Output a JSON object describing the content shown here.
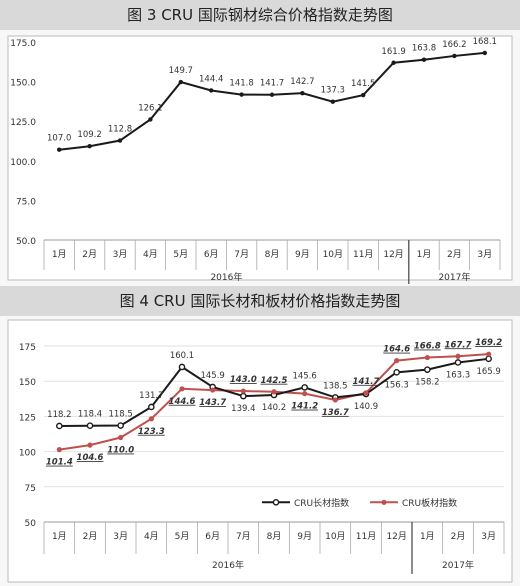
{
  "chart_data": [
    {
      "type": "line",
      "title": "图 3  CRU 国际钢材综合价格指数走势图",
      "categories": [
        "1月",
        "2月",
        "3月",
        "4月",
        "5月",
        "6月",
        "7月",
        "8月",
        "9月",
        "10月",
        "11月",
        "12月",
        "1月",
        "2月",
        "3月"
      ],
      "year_groups": [
        {
          "label": "2016年",
          "start": 0,
          "end": 11
        },
        {
          "label": "2017年",
          "start": 12,
          "end": 14
        }
      ],
      "ylim": [
        50,
        175
      ],
      "yticks": [
        "50.0",
        "75.0",
        "100.0",
        "125.0",
        "150.0",
        "175.0"
      ],
      "grid": false,
      "series": [
        {
          "values": [
            107.0,
            109.2,
            112.8,
            126.1,
            149.7,
            144.4,
            141.8,
            141.7,
            142.7,
            137.3,
            141.5,
            161.9,
            163.8,
            166.2,
            168.1
          ],
          "labels": [
            "107.0",
            "109.2",
            "112.8",
            "126.1",
            "149.7",
            "144.4",
            "141.8",
            "141.7",
            "142.7",
            "137.3",
            "141.5",
            "161.9",
            "163.8",
            "166.2",
            "168.1"
          ],
          "color": "#1a1a1a"
        }
      ]
    },
    {
      "type": "line",
      "title": "图 4  CRU 国际长材和板材价格指数走势图",
      "categories": [
        "1月",
        "2月",
        "3月",
        "4月",
        "5月",
        "6月",
        "7月",
        "8月",
        "9月",
        "10月",
        "11月",
        "12月",
        "1月",
        "2月",
        "3月"
      ],
      "year_groups": [
        {
          "label": "2016年",
          "start": 0,
          "end": 11
        },
        {
          "label": "2017年",
          "start": 12,
          "end": 14
        }
      ],
      "ylim": [
        50,
        175
      ],
      "yticks": [
        "50",
        "75",
        "100",
        "125",
        "150",
        "175"
      ],
      "grid": true,
      "legend_position": "bottom-right",
      "series": [
        {
          "name": "CRU长材指数",
          "values": [
            118.2,
            118.4,
            118.5,
            131.7,
            160.1,
            145.9,
            139.4,
            140.2,
            145.6,
            138.5,
            140.9,
            156.3,
            158.2,
            163.3,
            165.9
          ],
          "labels": [
            "118.2",
            "118.4",
            "118.5",
            "131.7",
            "160.1",
            "145.9",
            "139.4",
            "140.2",
            "145.6",
            "138.5",
            "140.9",
            "156.3",
            "158.2",
            "163.3",
            "165.9"
          ],
          "color": "#1a1a1a"
        },
        {
          "name": "CRU板材指数",
          "values": [
            101.4,
            104.6,
            110.0,
            123.3,
            144.6,
            143.7,
            143.0,
            142.5,
            141.2,
            136.7,
            141.7,
            164.6,
            166.8,
            167.7,
            169.2
          ],
          "labels": [
            "101.4",
            "104.6",
            "110.0",
            "123.3",
            "144.6",
            "143.7",
            "143.0",
            "142.5",
            "141.2",
            "136.7",
            "141.7",
            "164.6",
            "166.8",
            "167.7",
            "169.2"
          ],
          "color": "#c0504d"
        }
      ]
    }
  ]
}
